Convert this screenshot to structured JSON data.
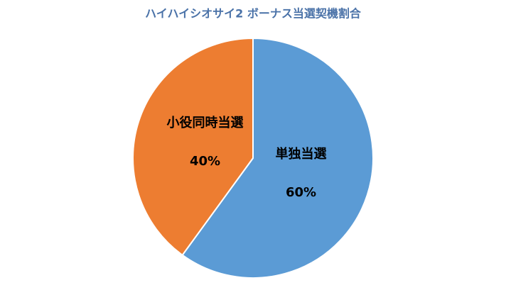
{
  "chart_data": {
    "type": "pie",
    "title": "ハイハイシオサイ2 ボーナス当選契機割合",
    "categories": [
      "単独当選",
      "小役同時当選"
    ],
    "values": [
      60,
      40
    ],
    "value_labels": [
      "60%",
      "40%"
    ],
    "colors": [
      "#5b9bd5",
      "#ed7d31"
    ]
  }
}
